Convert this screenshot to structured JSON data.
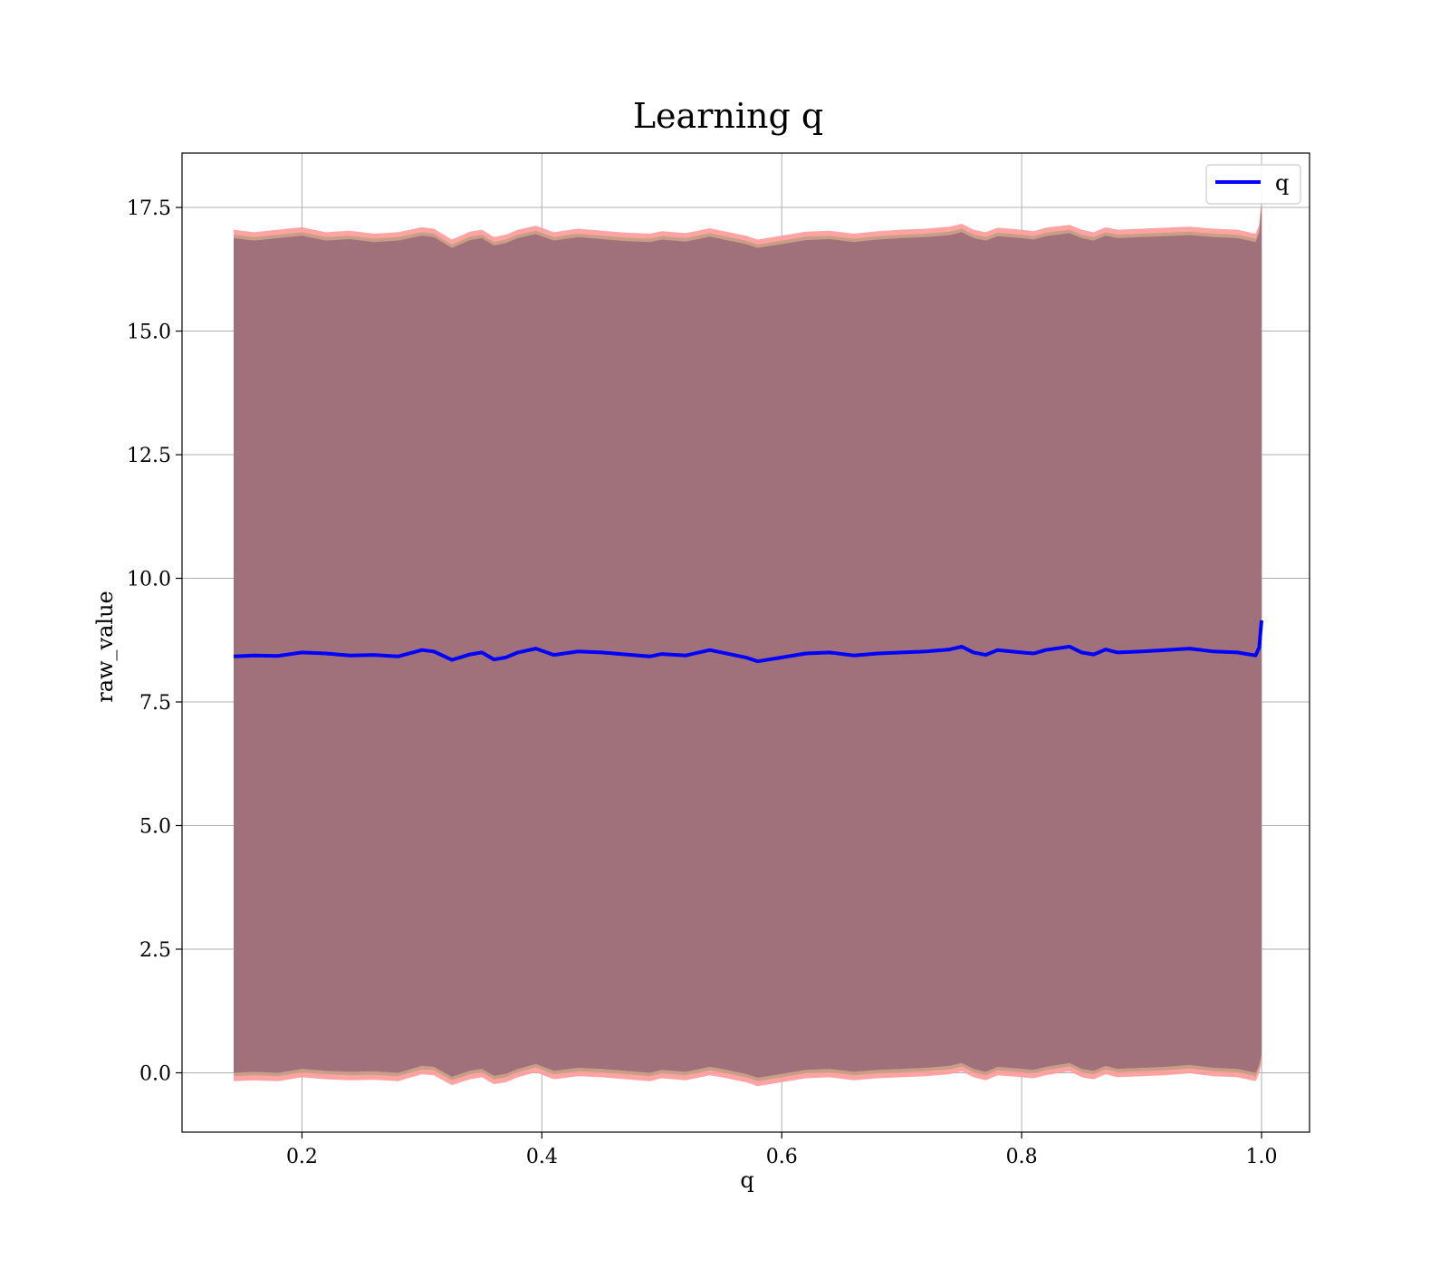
{
  "chart_data": {
    "type": "line",
    "title": "Learning q",
    "xlabel": "q",
    "ylabel": "raw_value",
    "xlim": [
      0.1,
      1.04
    ],
    "ylim": [
      -1.2,
      18.6
    ],
    "xticks": [
      "0.2",
      "0.4",
      "0.6",
      "0.8",
      "1.0"
    ],
    "yticks": [
      "0.0",
      "2.5",
      "5.0",
      "7.5",
      "10.0",
      "12.5",
      "15.0",
      "17.5"
    ],
    "grid": true,
    "legend_position": "top-right",
    "series": [
      {
        "name": "q",
        "color": "#0000ff",
        "x": [
          0.143,
          0.16,
          0.18,
          0.2,
          0.22,
          0.24,
          0.26,
          0.28,
          0.3,
          0.31,
          0.325,
          0.34,
          0.35,
          0.36,
          0.37,
          0.38,
          0.395,
          0.41,
          0.43,
          0.45,
          0.47,
          0.49,
          0.5,
          0.52,
          0.54,
          0.55,
          0.57,
          0.58,
          0.6,
          0.62,
          0.64,
          0.66,
          0.68,
          0.7,
          0.72,
          0.74,
          0.75,
          0.76,
          0.77,
          0.78,
          0.8,
          0.81,
          0.82,
          0.84,
          0.85,
          0.86,
          0.87,
          0.88,
          0.9,
          0.92,
          0.94,
          0.96,
          0.98,
          0.995,
          0.998,
          1.0
        ],
        "y": [
          8.42,
          8.44,
          8.43,
          8.5,
          8.48,
          8.44,
          8.45,
          8.42,
          8.55,
          8.52,
          8.35,
          8.46,
          8.5,
          8.36,
          8.4,
          8.5,
          8.58,
          8.45,
          8.52,
          8.5,
          8.46,
          8.42,
          8.47,
          8.44,
          8.55,
          8.5,
          8.4,
          8.32,
          8.4,
          8.48,
          8.5,
          8.44,
          8.48,
          8.5,
          8.52,
          8.56,
          8.62,
          8.5,
          8.45,
          8.55,
          8.5,
          8.48,
          8.55,
          8.62,
          8.5,
          8.46,
          8.56,
          8.5,
          8.52,
          8.55,
          8.58,
          8.52,
          8.5,
          8.44,
          8.6,
          9.15
        ]
      }
    ],
    "band": {
      "outer_color": "#ff9999",
      "inner_color": "#c89f86",
      "fill_color": "#a0717a",
      "upper": [
        17.0,
        16.95,
        17.0,
        17.05,
        16.95,
        16.98,
        16.92,
        16.95,
        17.05,
        17.02,
        16.8,
        16.96,
        17.0,
        16.85,
        16.9,
        17.0,
        17.08,
        16.95,
        17.02,
        16.98,
        16.94,
        16.92,
        16.97,
        16.93,
        17.03,
        16.98,
        16.88,
        16.8,
        16.88,
        16.96,
        16.98,
        16.92,
        16.97,
        17.0,
        17.02,
        17.06,
        17.12,
        17.0,
        16.95,
        17.04,
        17.0,
        16.97,
        17.04,
        17.1,
        17.0,
        16.95,
        17.05,
        17.0,
        17.02,
        17.04,
        17.06,
        17.02,
        17.0,
        16.92,
        17.1,
        17.65
      ],
      "lower": [
        -0.12,
        -0.1,
        -0.12,
        -0.04,
        -0.08,
        -0.1,
        -0.09,
        -0.12,
        0.02,
        0.0,
        -0.2,
        -0.08,
        -0.04,
        -0.18,
        -0.14,
        -0.04,
        0.06,
        -0.08,
        -0.02,
        -0.04,
        -0.08,
        -0.12,
        -0.06,
        -0.1,
        0.0,
        -0.04,
        -0.14,
        -0.22,
        -0.14,
        -0.06,
        -0.04,
        -0.1,
        -0.06,
        -0.04,
        -0.02,
        0.02,
        0.08,
        -0.04,
        -0.1,
        0.0,
        -0.04,
        -0.06,
        0.0,
        0.08,
        -0.04,
        -0.08,
        0.02,
        -0.04,
        -0.02,
        0.0,
        0.04,
        -0.02,
        -0.04,
        -0.12,
        0.04,
        0.25
      ]
    }
  }
}
